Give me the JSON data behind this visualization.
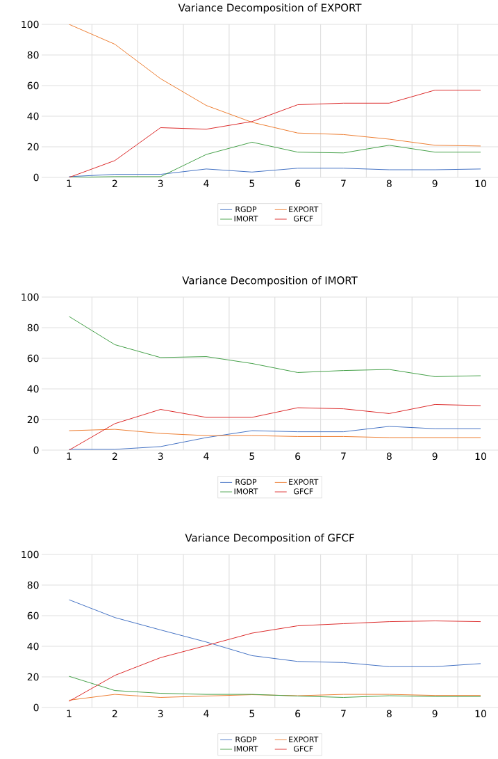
{
  "chart_data": [
    {
      "type": "line",
      "title": "Variance Decomposition of EXPORT",
      "categories": [
        "1",
        "2",
        "3",
        "4",
        "5",
        "6",
        "7",
        "8",
        "9",
        "10"
      ],
      "ylim": [
        0,
        100
      ],
      "yticks": [
        0,
        20,
        40,
        60,
        80,
        100
      ],
      "grid": true,
      "legend": "bottom",
      "marker": "none",
      "series": [
        {
          "name": "RGDP",
          "color": "#4472c4",
          "values": [
            0.5,
            2,
            2,
            5.5,
            3.5,
            6,
            6,
            5,
            5,
            5.5
          ]
        },
        {
          "name": "EXPORT",
          "color": "#ed7d31",
          "values": [
            100,
            87,
            64.5,
            47,
            36,
            29,
            28,
            25,
            21,
            20.5
          ]
        },
        {
          "name": "IMORT",
          "color": "#43a047",
          "values": [
            0,
            0.5,
            0.5,
            15,
            23,
            16.5,
            16,
            21,
            16.5,
            16.5
          ]
        },
        {
          "name": "GFCF",
          "color": "#dc2a2a",
          "values": [
            0,
            11,
            32.5,
            31.5,
            36.5,
            47.5,
            48.5,
            48.5,
            57,
            57
          ]
        }
      ]
    },
    {
      "type": "line",
      "title": "Variance Decomposition of IMORT",
      "categories": [
        "1",
        "2",
        "3",
        "4",
        "5",
        "6",
        "7",
        "8",
        "9",
        "10"
      ],
      "ylim": [
        0,
        100
      ],
      "yticks": [
        0,
        20,
        40,
        60,
        80,
        100
      ],
      "grid": true,
      "legend": "bottom",
      "marker": "none",
      "series": [
        {
          "name": "RGDP",
          "color": "#4472c4",
          "values": [
            0.5,
            0.5,
            2.3,
            8.2,
            12.7,
            12,
            12,
            15.5,
            14,
            14
          ]
        },
        {
          "name": "EXPORT",
          "color": "#ed7d31",
          "values": [
            12.7,
            13.6,
            10.9,
            9.5,
            9.5,
            8.9,
            8.9,
            8.2,
            8.2,
            8.2
          ]
        },
        {
          "name": "IMORT",
          "color": "#43a047",
          "values": [
            87.3,
            68.9,
            60.5,
            61.1,
            56.6,
            50.7,
            52,
            52.7,
            48,
            48.6
          ]
        },
        {
          "name": "GFCF",
          "color": "#dc2a2a",
          "values": [
            0,
            17.3,
            26.6,
            21.4,
            21.4,
            27.7,
            27,
            23.9,
            29.8,
            29.1
          ]
        }
      ]
    },
    {
      "type": "line",
      "title": "Variance Decomposition of GFCF",
      "categories": [
        "1",
        "2",
        "3",
        "4",
        "5",
        "6",
        "7",
        "8",
        "9",
        "10"
      ],
      "ylim": [
        0,
        100
      ],
      "yticks": [
        0,
        20,
        40,
        60,
        80,
        100
      ],
      "grid": true,
      "legend": "bottom",
      "marker": "none",
      "series": [
        {
          "name": "RGDP",
          "color": "#4472c4",
          "values": [
            70.4,
            58.8,
            50.7,
            42.8,
            33.9,
            30.1,
            29.4,
            26.7,
            26.7,
            28.7
          ]
        },
        {
          "name": "EXPORT",
          "color": "#ed7d31",
          "values": [
            4.8,
            8.6,
            6.6,
            7.5,
            8.4,
            7.7,
            8.6,
            8.6,
            7.9,
            7.9
          ]
        },
        {
          "name": "IMORT",
          "color": "#43a047",
          "values": [
            20.4,
            11.1,
            9.3,
            8.6,
            8.6,
            7.5,
            6.6,
            7.7,
            7.2,
            7.2
          ]
        },
        {
          "name": "GFCF",
          "color": "#dc2a2a",
          "values": [
            4.1,
            21,
            32.6,
            40.5,
            48.6,
            53.4,
            54.8,
            56.1,
            56.6,
            56.1
          ]
        }
      ]
    }
  ]
}
